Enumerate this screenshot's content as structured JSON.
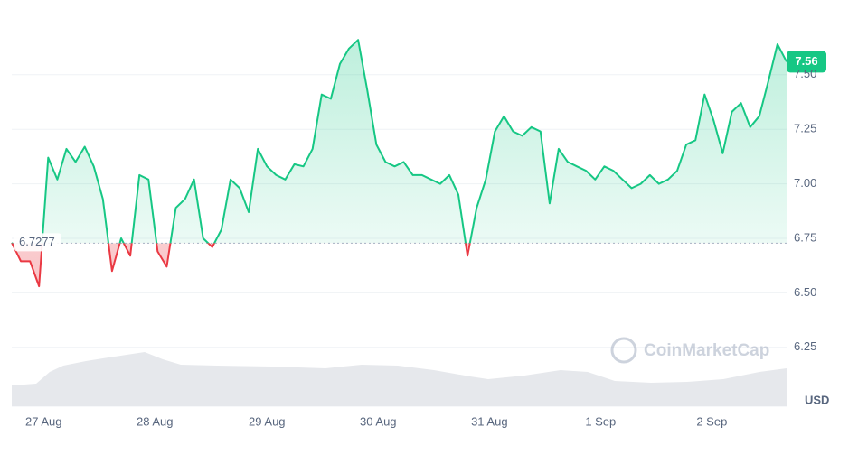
{
  "chart_data": {
    "type": "line",
    "values": [
      6.73,
      6.645,
      6.645,
      6.53,
      7.12,
      7.02,
      7.16,
      7.1,
      7.17,
      7.08,
      6.93,
      6.6,
      6.75,
      6.67,
      7.04,
      7.02,
      6.69,
      6.62,
      6.89,
      6.93,
      7.02,
      6.75,
      6.71,
      6.79,
      7.02,
      6.98,
      6.87,
      7.16,
      7.08,
      7.04,
      7.02,
      7.09,
      7.08,
      7.16,
      7.41,
      7.39,
      7.55,
      7.62,
      7.66,
      7.43,
      7.18,
      7.1,
      7.08,
      7.1,
      7.04,
      7.04,
      7.02,
      7.0,
      7.04,
      6.95,
      6.67,
      6.89,
      7.02,
      7.24,
      7.31,
      7.24,
      7.22,
      7.26,
      7.24,
      6.91,
      7.16,
      7.1,
      7.08,
      7.06,
      7.02,
      7.08,
      7.06,
      7.02,
      6.98,
      7.0,
      7.04,
      7.0,
      7.02,
      7.06,
      7.18,
      7.2,
      7.41,
      7.29,
      7.14,
      7.33,
      7.37,
      7.26,
      7.31,
      7.47,
      7.64,
      7.56
    ],
    "color": "#16c784",
    "below_color": "#ea3943",
    "baseline": 6.7277,
    "currency": "USD",
    "watermark": "CoinMarketCap",
    "ylim": [
      5.98,
      7.76
    ],
    "yticks": [
      6.25,
      {
        "value": 6.5,
        "label": "6.50"
      },
      {
        "value": 6.75,
        "label": "6.75"
      },
      {
        "value": 7,
        "label": "7.00"
      },
      {
        "value": 7.25,
        "label": "7.25"
      },
      {
        "value": 7.5,
        "label": "7.50"
      }
    ],
    "xlim": [
      0,
      85
    ],
    "xticks": [
      {
        "value": 3.5,
        "label": "27 Aug"
      },
      {
        "value": 15.7,
        "label": "28 Aug"
      },
      {
        "value": 28,
        "label": "29 Aug"
      },
      {
        "value": 40.2,
        "label": "30 Aug"
      },
      {
        "value": 52.4,
        "label": "31 Aug"
      },
      {
        "value": 64.6,
        "label": "1 Sep"
      },
      {
        "value": 76.8,
        "label": "2 Sep"
      }
    ],
    "grid": true
  }
}
